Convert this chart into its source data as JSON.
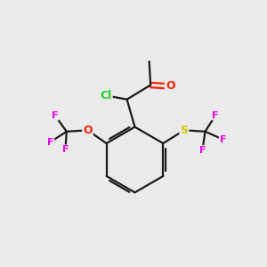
{
  "background_color": "#ebebeb",
  "bond_color": "#1a1a1a",
  "atom_colors": {
    "Cl": "#22cc22",
    "O_carbonyl": "#ff2200",
    "O_ether": "#ff2200",
    "S": "#cccc00",
    "F": "#ee00ee",
    "C": "#1a1a1a"
  },
  "figsize": [
    3.0,
    3.0
  ],
  "dpi": 100
}
